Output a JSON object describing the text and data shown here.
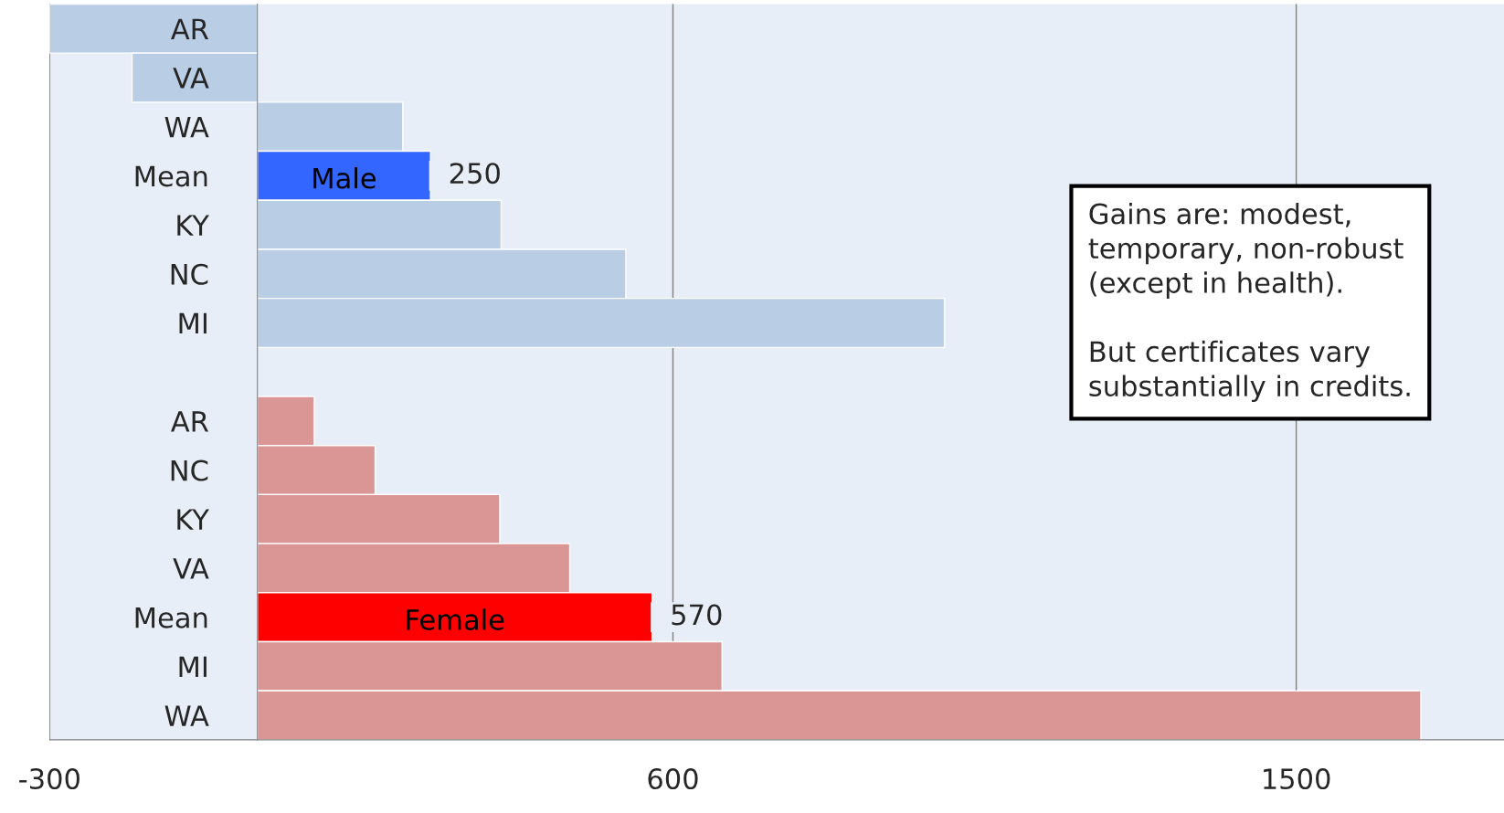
{
  "chart_data": {
    "type": "bar",
    "orientation": "horizontal",
    "categories": [
      "AR",
      "VA",
      "WA",
      "Mean",
      "KY",
      "NC",
      "MI",
      null,
      "AR",
      "NC",
      "KY",
      "VA",
      "Mean",
      "MI",
      "WA"
    ],
    "series": [
      {
        "name": "Male",
        "values": [
          -300,
          -181,
          210,
          250,
          352,
          532,
          992,
          null,
          null,
          null,
          null,
          null,
          null,
          null,
          null
        ],
        "colors": [
          "#b9cde4",
          "#b9cde4",
          "#b9cde4",
          "#3366ff",
          "#b9cde4",
          "#b9cde4",
          "#b9cde4",
          null,
          null,
          null,
          null,
          null,
          null,
          null,
          null
        ],
        "value_labels": [
          null,
          null,
          null,
          "250",
          null,
          null,
          null,
          null,
          null,
          null,
          null,
          null,
          null,
          null,
          null
        ]
      },
      {
        "name": "Female",
        "values": [
          null,
          null,
          null,
          null,
          null,
          null,
          null,
          null,
          82,
          170,
          350,
          451,
          570,
          671,
          1680
        ],
        "colors": [
          null,
          null,
          null,
          null,
          null,
          null,
          null,
          null,
          "#d99694",
          "#d99694",
          "#d99694",
          "#d99694",
          "#ff0000",
          "#d99694",
          "#d99694"
        ],
        "value_labels": [
          null,
          null,
          null,
          null,
          null,
          null,
          null,
          null,
          null,
          null,
          null,
          null,
          "570",
          null,
          null
        ]
      }
    ],
    "xlim": [
      -300,
      1800
    ],
    "xticks": [
      -300,
      600,
      1500
    ],
    "grid": "x",
    "legend": false,
    "annotations": [
      "Gains are: modest,\ntemporary, non-robust\n(except in health).\n\nBut certificates vary\nsubstantially in credits."
    ]
  }
}
